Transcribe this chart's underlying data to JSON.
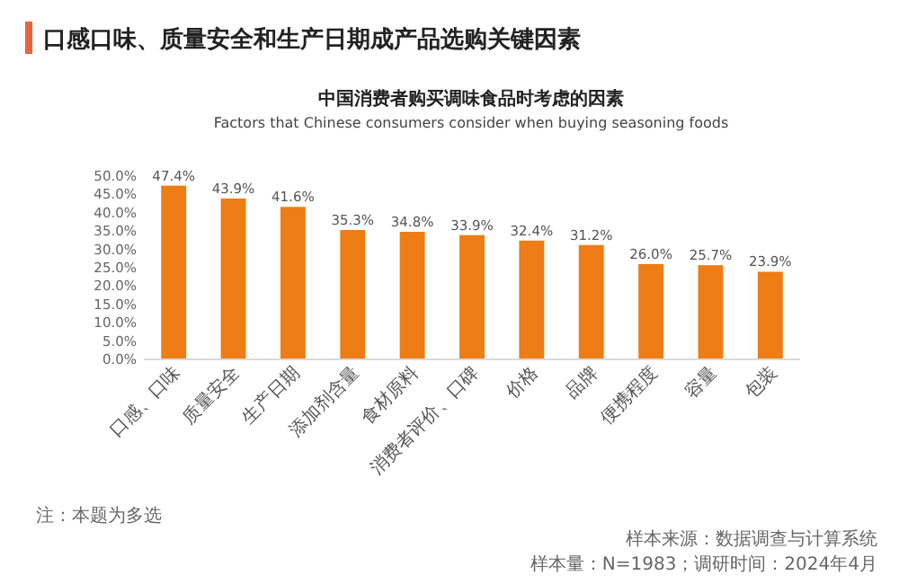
{
  "chart_data": {
    "type": "bar",
    "title": "口感口味、质量安全和生产日期成产品选购关键因素",
    "subtitle": "中国消费者购买调味食品时考虑的因素\nFactors that Chinese consumers consider when buying seasoning foods",
    "categories": [
      "口感、口味",
      "质量安全",
      "生产日期",
      "添加剂含量",
      "食材原料",
      "消费者评价、口碑",
      "价格",
      "品牌",
      "便携程度",
      "容量",
      "包装"
    ],
    "values": [
      47.4,
      43.9,
      41.6,
      35.3,
      34.8,
      33.9,
      32.4,
      31.2,
      26.0,
      25.7,
      23.9
    ],
    "color": "#ed7d14",
    "grid": false,
    "value_labels": [
      "47.4%",
      "43.9%",
      "41.6%",
      "35.3%",
      "34.8%",
      "33.9%",
      "32.4%",
      "31.2%",
      "26.0%",
      "25.7%",
      "23.9%"
    ],
    "ylim": [
      0,
      50
    ],
    "yticks": [
      {
        "value": 0,
        "label": "0.0%"
      },
      {
        "value": 5,
        "label": "5.0%"
      },
      {
        "value": 10,
        "label": "10.0%"
      },
      {
        "value": 15,
        "label": "15.0%"
      },
      {
        "value": 20,
        "label": "20.0%"
      },
      {
        "value": 25,
        "label": "25.0%"
      },
      {
        "value": 30,
        "label": "30.0%"
      },
      {
        "value": 35,
        "label": "35.0%"
      },
      {
        "value": 40,
        "label": "40.0%"
      },
      {
        "value": 45,
        "label": "45.0%"
      },
      {
        "value": 50,
        "label": "50.0%"
      }
    ],
    "annotations": [
      "注：本题为多选",
      "样本来源：数据调查与计算系统",
      "样本量：N=1983；调研时间：2024年4月"
    ]
  }
}
